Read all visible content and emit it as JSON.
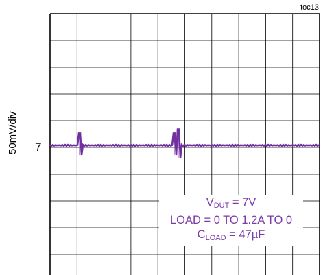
{
  "figure_id": "toc13",
  "chart_data": {
    "type": "line",
    "ylabel": "50mV/div",
    "level_marker": "7",
    "grid": true,
    "grid_divisions": {
      "x": 10,
      "y": 10
    },
    "series": [
      {
        "color": "#7030a0",
        "baseline_div": 3.15,
        "spikes": [
          {
            "x_div": 1.1,
            "amplitude_div": 0.45
          },
          {
            "x_div": 4.6,
            "amplitude_div": 0.45
          },
          {
            "x_div": 4.75,
            "amplitude_div": 0.6
          }
        ]
      }
    ],
    "annotations": {
      "vdut_main": "V",
      "vdut_sub": "DUT",
      "vdut_rest": " = 7V",
      "load": "LOAD = 0 TO 1.2A TO 0",
      "cload_main": "C",
      "cload_sub": "LOAD",
      "cload_rest": " = 47µF"
    }
  }
}
